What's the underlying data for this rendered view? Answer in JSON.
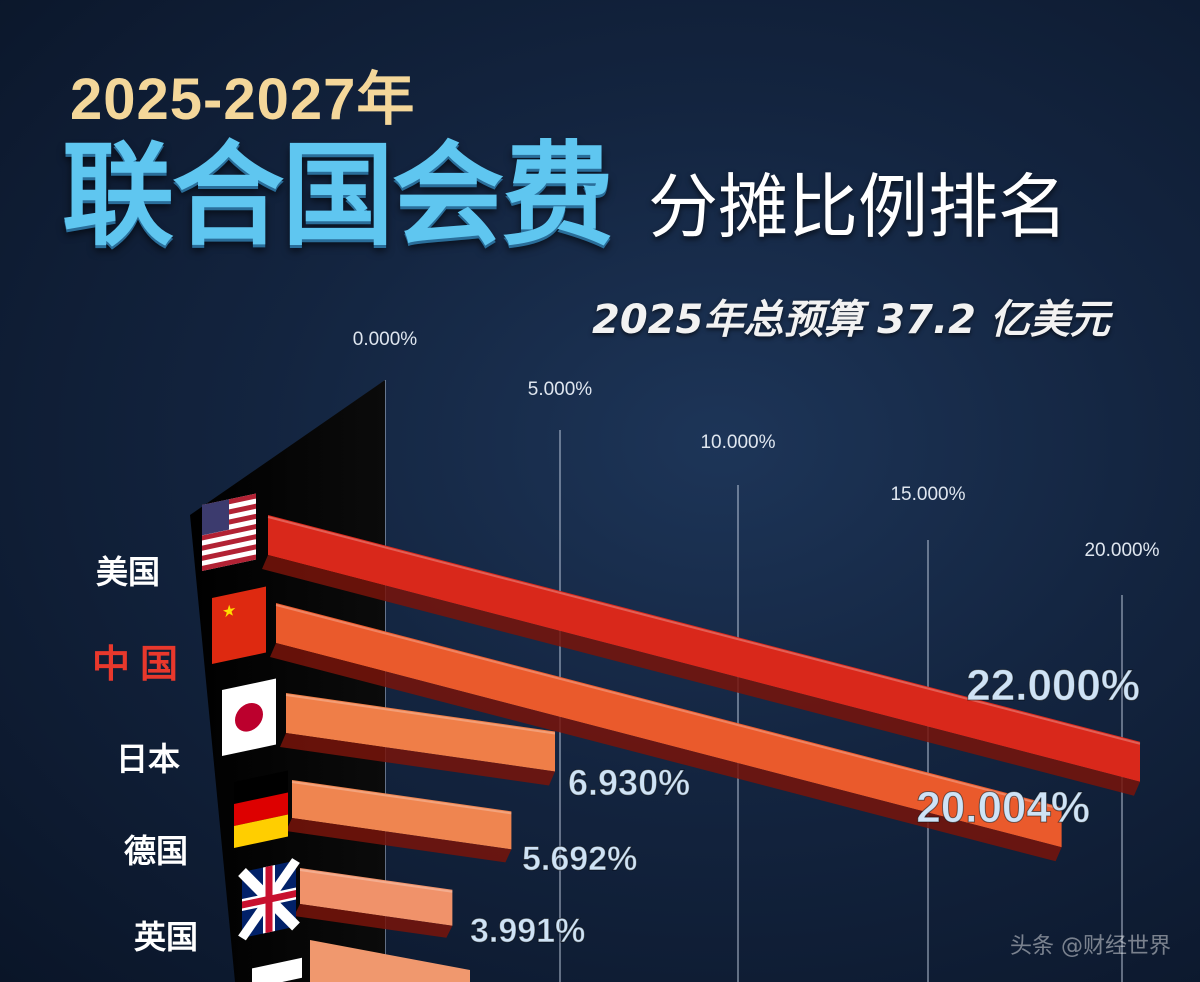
{
  "header": {
    "year_range": "2025-2027年",
    "title_main": "联合国会费",
    "title_sub": "分摊比例排名",
    "budget_note": "2025年总预算 37.2 亿美元"
  },
  "colors": {
    "year": "#f4d79a",
    "title_main": "#5fc6f0",
    "highlight_label": "#e8382c",
    "value_label": "#cfe3f6",
    "bar_top": "#d92a1c",
    "bar_low": "#ef8a55"
  },
  "chart_data": {
    "type": "bar",
    "orientation": "horizontal",
    "title": "联合国会费分摊比例排名",
    "xlim": [
      0,
      20
    ],
    "x_ticks": [
      "0.000%",
      "5.000%",
      "10.000%",
      "15.000%",
      "20.000%"
    ],
    "grid": true,
    "categories": [
      "美国",
      "中国",
      "日本",
      "德国",
      "英国"
    ],
    "values": [
      22.0,
      20.004,
      6.93,
      5.692,
      3.991
    ],
    "value_labels": [
      "22.000%",
      "20.004%",
      "6.930%",
      "5.692%",
      "3.991%"
    ],
    "highlight": "中国",
    "flag_icons": [
      "us-flag-icon",
      "china-flag-icon",
      "japan-flag-icon",
      "germany-flag-icon",
      "uk-flag-icon"
    ]
  },
  "watermark": "头条 @财经世界"
}
